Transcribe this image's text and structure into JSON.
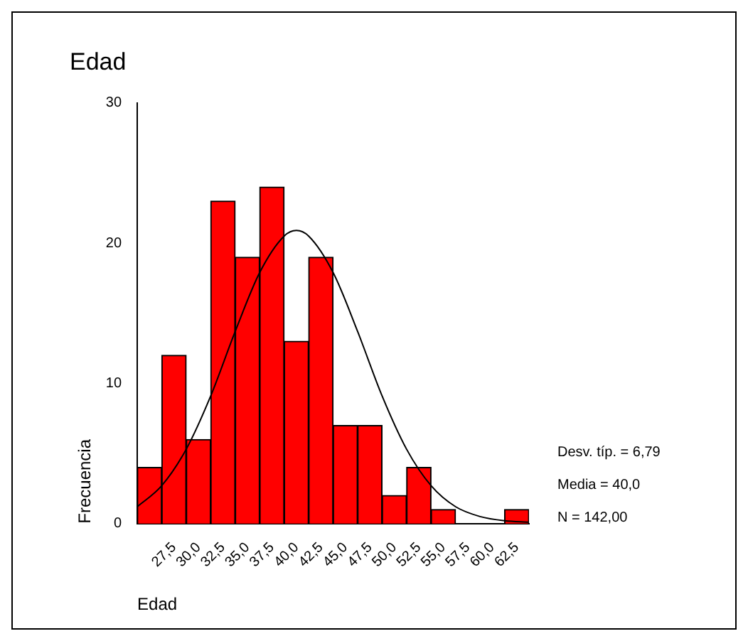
{
  "chart_data": {
    "type": "histogram",
    "title": "Edad",
    "xlabel": "Edad",
    "ylabel": "Frecuencia",
    "bins": [
      23.75,
      26.25,
      28.75,
      31.25,
      33.75,
      36.25,
      38.75,
      41.25,
      43.75,
      46.25,
      48.75,
      51.25,
      53.75,
      56.25,
      58.75,
      61.25,
      63.75
    ],
    "values": [
      4,
      12,
      6,
      23,
      19,
      24,
      13,
      19,
      7,
      7,
      2,
      4,
      1,
      0,
      0,
      1
    ],
    "color": "#ff0000",
    "series": [
      {
        "type": "line",
        "color": "#000000",
        "x": [
          23.75,
          26.25,
          28.75,
          31.25,
          33.75,
          36.25,
          38.75,
          40,
          41.25,
          43.75,
          46.25,
          48.75,
          51.25,
          53.75,
          56.25,
          58.75,
          61.25,
          63.75
        ],
        "values": [
          1.2,
          2.7,
          5.3,
          9.1,
          13.7,
          17.9,
          20.5,
          20.9,
          20.5,
          17.9,
          13.7,
          9.1,
          5.3,
          2.7,
          1.2,
          0.5,
          0.2,
          0.1
        ]
      }
    ],
    "xlim": [
      23.75,
      63.75
    ],
    "xticks": [
      {
        "value": 27.5,
        "label": "27,5"
      },
      {
        "value": 30,
        "label": "30,0"
      },
      {
        "value": 32.5,
        "label": "32,5"
      },
      {
        "value": 35,
        "label": "35,0"
      },
      {
        "value": 37.5,
        "label": "37,5"
      },
      {
        "value": 40,
        "label": "40,0"
      },
      {
        "value": 42.5,
        "label": "42,5"
      },
      {
        "value": 45,
        "label": "45,0"
      },
      {
        "value": 47.5,
        "label": "47,5"
      },
      {
        "value": 50,
        "label": "50,0"
      },
      {
        "value": 52.5,
        "label": "52,5"
      },
      {
        "value": 55,
        "label": "55,0"
      },
      {
        "value": 57.5,
        "label": "57,5"
      },
      {
        "value": 60,
        "label": "60,0"
      },
      {
        "value": 62.5,
        "label": "62,5"
      }
    ],
    "ylim": [
      0,
      30
    ],
    "yticks": [
      0,
      10,
      20,
      30
    ],
    "annotations": [
      "Desv. típ. = 6,79",
      "Media = 40,0",
      "N = 142,00"
    ]
  }
}
